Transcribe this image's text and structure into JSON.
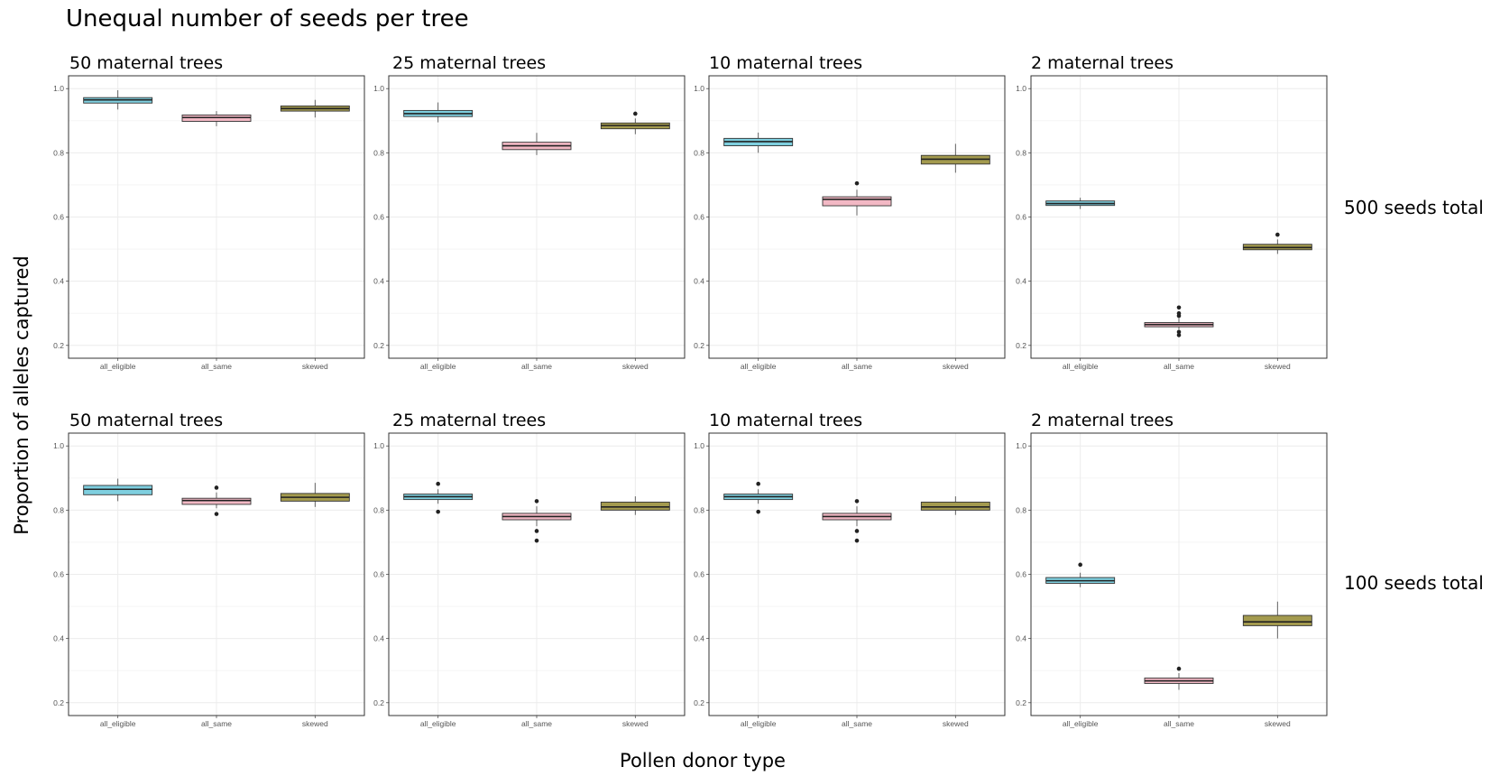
{
  "figure": {
    "title": "Unequal number of seeds per tree",
    "ylabel": "Proportion of alleles captured",
    "xlabel": "Pollen donor type",
    "row_labels": [
      "500 seeds total",
      "100 seeds total"
    ]
  },
  "colors": {
    "all_eligible": "#7ecfdf",
    "all_same": "#f2b8c4",
    "skewed": "#a39a4e",
    "grid": "#ececec",
    "frame": "#333333"
  },
  "chart_data": [
    {
      "type": "box",
      "title": "50 maternal trees",
      "row": "500 seeds total",
      "categories": [
        "all_eligible",
        "all_same",
        "skewed"
      ],
      "ylim": [
        0.16,
        1.04
      ],
      "yticks": [
        0.2,
        0.4,
        0.6,
        0.8,
        1.0
      ],
      "ytick_labels": [
        "0.2",
        "0.4",
        "0.6",
        "0.8",
        "1.0"
      ],
      "grid": true,
      "boxes": [
        {
          "category": "all_eligible",
          "min": 0.935,
          "q1": 0.955,
          "median": 0.965,
          "q3": 0.972,
          "max": 0.995,
          "outliers": []
        },
        {
          "category": "all_same",
          "min": 0.883,
          "q1": 0.898,
          "median": 0.91,
          "q3": 0.918,
          "max": 0.93,
          "outliers": []
        },
        {
          "category": "skewed",
          "min": 0.91,
          "q1": 0.93,
          "median": 0.938,
          "q3": 0.946,
          "max": 0.965,
          "outliers": []
        }
      ]
    },
    {
      "type": "box",
      "title": "25 maternal trees",
      "row": "500 seeds total",
      "categories": [
        "all_eligible",
        "all_same",
        "skewed"
      ],
      "ylim": [
        0.16,
        1.04
      ],
      "yticks": [
        0.2,
        0.4,
        0.6,
        0.8,
        1.0
      ],
      "ytick_labels": [
        "0.2",
        "0.4",
        "0.6",
        "0.8",
        "1.0"
      ],
      "grid": true,
      "boxes": [
        {
          "category": "all_eligible",
          "min": 0.895,
          "q1": 0.913,
          "median": 0.922,
          "q3": 0.932,
          "max": 0.957,
          "outliers": []
        },
        {
          "category": "all_same",
          "min": 0.793,
          "q1": 0.81,
          "median": 0.822,
          "q3": 0.833,
          "max": 0.862,
          "outliers": []
        },
        {
          "category": "skewed",
          "min": 0.858,
          "q1": 0.875,
          "median": 0.885,
          "q3": 0.893,
          "max": 0.907,
          "outliers": [
            0.922
          ]
        }
      ]
    },
    {
      "type": "box",
      "title": "10 maternal trees",
      "row": "500 seeds total",
      "categories": [
        "all_eligible",
        "all_same",
        "skewed"
      ],
      "ylim": [
        0.16,
        1.04
      ],
      "yticks": [
        0.2,
        0.4,
        0.6,
        0.8,
        1.0
      ],
      "ytick_labels": [
        "0.2",
        "0.4",
        "0.6",
        "0.8",
        "1.0"
      ],
      "grid": true,
      "boxes": [
        {
          "category": "all_eligible",
          "min": 0.8,
          "q1": 0.822,
          "median": 0.835,
          "q3": 0.845,
          "max": 0.863,
          "outliers": []
        },
        {
          "category": "all_same",
          "min": 0.605,
          "q1": 0.635,
          "median": 0.655,
          "q3": 0.663,
          "max": 0.685,
          "outliers": [
            0.705
          ]
        },
        {
          "category": "skewed",
          "min": 0.738,
          "q1": 0.765,
          "median": 0.78,
          "q3": 0.792,
          "max": 0.828,
          "outliers": []
        }
      ]
    },
    {
      "type": "box",
      "title": "2 maternal trees",
      "row": "500 seeds total",
      "categories": [
        "all_eligible",
        "all_same",
        "skewed"
      ],
      "ylim": [
        0.16,
        1.04
      ],
      "yticks": [
        0.2,
        0.4,
        0.6,
        0.8,
        1.0
      ],
      "ytick_labels": [
        "0.2",
        "0.4",
        "0.6",
        "0.8",
        "1.0"
      ],
      "grid": true,
      "boxes": [
        {
          "category": "all_eligible",
          "min": 0.625,
          "q1": 0.636,
          "median": 0.642,
          "q3": 0.65,
          "max": 0.66,
          "outliers": []
        },
        {
          "category": "all_same",
          "min": 0.25,
          "q1": 0.258,
          "median": 0.265,
          "q3": 0.271,
          "max": 0.285,
          "outliers": [
            0.232,
            0.242,
            0.292,
            0.3,
            0.318
          ]
        },
        {
          "category": "skewed",
          "min": 0.485,
          "q1": 0.498,
          "median": 0.505,
          "q3": 0.515,
          "max": 0.53,
          "outliers": [
            0.545
          ]
        }
      ]
    },
    {
      "type": "box",
      "title": "50 maternal trees",
      "row": "100 seeds total",
      "categories": [
        "all_eligible",
        "all_same",
        "skewed"
      ],
      "ylim": [
        0.16,
        1.04
      ],
      "yticks": [
        0.2,
        0.4,
        0.6,
        0.8,
        1.0
      ],
      "ytick_labels": [
        "0.2",
        "0.4",
        "0.6",
        "0.8",
        "1.0"
      ],
      "grid": true,
      "boxes": [
        {
          "category": "all_eligible",
          "min": 0.828,
          "q1": 0.848,
          "median": 0.865,
          "q3": 0.877,
          "max": 0.898,
          "outliers": []
        },
        {
          "category": "all_same",
          "min": 0.806,
          "q1": 0.818,
          "median": 0.83,
          "q3": 0.837,
          "max": 0.855,
          "outliers": [
            0.788,
            0.87
          ]
        },
        {
          "category": "skewed",
          "min": 0.81,
          "q1": 0.828,
          "median": 0.84,
          "q3": 0.852,
          "max": 0.885,
          "outliers": []
        }
      ]
    },
    {
      "type": "box",
      "title": "25 maternal trees",
      "row": "100 seeds total",
      "categories": [
        "all_eligible",
        "all_same",
        "skewed"
      ],
      "ylim": [
        0.16,
        1.04
      ],
      "yticks": [
        0.2,
        0.4,
        0.6,
        0.8,
        1.0
      ],
      "ytick_labels": [
        "0.2",
        "0.4",
        "0.6",
        "0.8",
        "1.0"
      ],
      "grid": true,
      "boxes": [
        {
          "category": "all_eligible",
          "min": 0.82,
          "q1": 0.833,
          "median": 0.842,
          "q3": 0.85,
          "max": 0.865,
          "outliers": [
            0.795,
            0.882
          ]
        },
        {
          "category": "all_same",
          "min": 0.75,
          "q1": 0.77,
          "median": 0.78,
          "q3": 0.79,
          "max": 0.812,
          "outliers": [
            0.705,
            0.735,
            0.828
          ]
        },
        {
          "category": "skewed",
          "min": 0.785,
          "q1": 0.8,
          "median": 0.81,
          "q3": 0.825,
          "max": 0.843,
          "outliers": []
        }
      ]
    },
    {
      "type": "box",
      "title": "10 maternal trees",
      "row": "100 seeds total",
      "categories": [
        "all_eligible",
        "all_same",
        "skewed"
      ],
      "ylim": [
        0.16,
        1.04
      ],
      "yticks": [
        0.2,
        0.4,
        0.6,
        0.8,
        1.0
      ],
      "ytick_labels": [
        "0.2",
        "0.4",
        "0.6",
        "0.8",
        "1.0"
      ],
      "grid": true,
      "boxes": [
        {
          "category": "all_eligible",
          "min": 0.82,
          "q1": 0.833,
          "median": 0.842,
          "q3": 0.85,
          "max": 0.865,
          "outliers": [
            0.795,
            0.882
          ]
        },
        {
          "category": "all_same",
          "min": 0.75,
          "q1": 0.77,
          "median": 0.78,
          "q3": 0.79,
          "max": 0.812,
          "outliers": [
            0.705,
            0.735,
            0.828
          ]
        },
        {
          "category": "skewed",
          "min": 0.785,
          "q1": 0.8,
          "median": 0.81,
          "q3": 0.825,
          "max": 0.843,
          "outliers": []
        }
      ]
    },
    {
      "type": "box",
      "title": "2 maternal trees",
      "row": "100 seeds total",
      "categories": [
        "all_eligible",
        "all_same",
        "skewed"
      ],
      "ylim": [
        0.16,
        1.04
      ],
      "yticks": [
        0.2,
        0.4,
        0.6,
        0.8,
        1.0
      ],
      "ytick_labels": [
        "0.2",
        "0.4",
        "0.6",
        "0.8",
        "1.0"
      ],
      "grid": true,
      "boxes": [
        {
          "category": "all_eligible",
          "min": 0.56,
          "q1": 0.572,
          "median": 0.58,
          "q3": 0.59,
          "max": 0.605,
          "outliers": [
            0.63
          ]
        },
        {
          "category": "all_same",
          "min": 0.24,
          "q1": 0.26,
          "median": 0.268,
          "q3": 0.277,
          "max": 0.292,
          "outliers": [
            0.306
          ]
        },
        {
          "category": "skewed",
          "min": 0.4,
          "q1": 0.44,
          "median": 0.452,
          "q3": 0.472,
          "max": 0.515,
          "outliers": []
        }
      ]
    }
  ]
}
